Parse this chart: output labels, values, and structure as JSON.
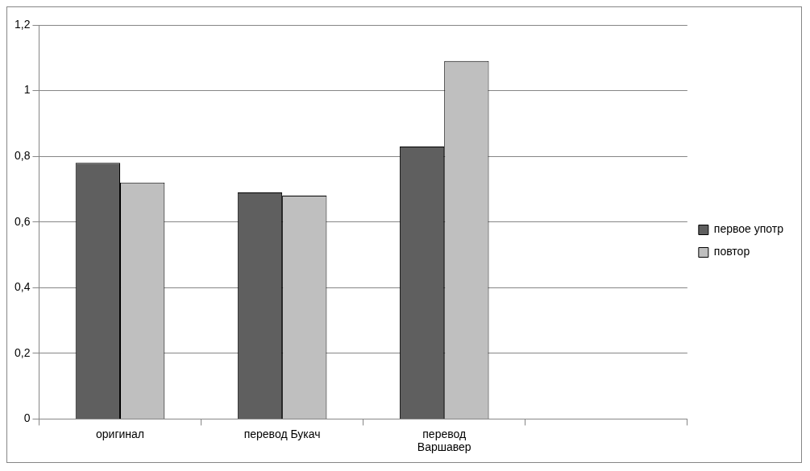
{
  "chart_data": {
    "type": "bar",
    "categories": [
      "оригинал",
      "перевод Букач",
      "перевод Варшавер",
      null
    ],
    "series": [
      {
        "name": "первое употр",
        "color": "#5f5f5f",
        "values": [
          0.78,
          0.69,
          0.83,
          null
        ]
      },
      {
        "name": "повтор",
        "color": "#bfbfbf",
        "values": [
          0.72,
          0.68,
          1.09,
          null
        ]
      }
    ],
    "ylim": [
      0,
      1.2
    ],
    "yticks": [
      0,
      {
        "value": 0.2,
        "label": "0,2"
      },
      {
        "value": 0.4,
        "label": "0,4"
      },
      {
        "value": 0.6,
        "label": "0,6"
      },
      {
        "value": 0.8,
        "label": "0,8"
      },
      1,
      {
        "value": 1.2,
        "label": "1,2"
      }
    ],
    "grid": "y",
    "legend": "right"
  }
}
